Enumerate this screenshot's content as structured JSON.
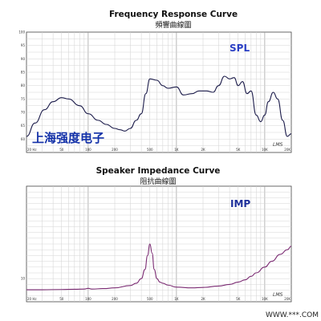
{
  "colors": {
    "spl": "#1b1b4a",
    "imp": "#7a2a72",
    "spl_label": "#2a3fc4",
    "imp_label": "#1d2f9a",
    "overlay": "#1230a8"
  },
  "overlay_text": "上海强度电子",
  "corner_text": "WWW.***.COM",
  "chart_data": [
    {
      "type": "line",
      "title": "Frequency Response Curve",
      "subtitle": "頻響曲線圖",
      "series_label": "SPL",
      "watermark": "LMS",
      "x_scale": "log",
      "xlim": [
        20,
        20000
      ],
      "ylim": [
        55,
        100
      ],
      "x_ticks": [
        {
          "v": 20,
          "label": "20 Hz"
        },
        {
          "v": 50,
          "label": "50"
        },
        {
          "v": 100,
          "label": "100"
        },
        {
          "v": 200,
          "label": "200"
        },
        {
          "v": 500,
          "label": "500"
        },
        {
          "v": 1000,
          "label": "1K"
        },
        {
          "v": 2000,
          "label": "2K"
        },
        {
          "v": 5000,
          "label": "5K"
        },
        {
          "v": 10000,
          "label": "10K"
        },
        {
          "v": 20000,
          "label": "20K"
        }
      ],
      "y_ticks": [
        {
          "v": 100,
          "label": "100"
        },
        {
          "v": 95,
          "label": "95"
        },
        {
          "v": 90,
          "label": "90"
        },
        {
          "v": 85,
          "label": "85"
        },
        {
          "v": 80,
          "label": "80"
        },
        {
          "v": 75,
          "label": "75"
        },
        {
          "v": 70,
          "label": "70"
        },
        {
          "v": 65,
          "label": "65"
        },
        {
          "v": 60,
          "label": "60"
        }
      ],
      "grid": true,
      "x": [
        20,
        25,
        32,
        40,
        50,
        60,
        80,
        100,
        130,
        160,
        200,
        230,
        260,
        300,
        350,
        400,
        450,
        500,
        600,
        700,
        800,
        1000,
        1200,
        1500,
        1800,
        2200,
        2600,
        3000,
        3500,
        4000,
        4500,
        5000,
        5600,
        6300,
        7000,
        8000,
        9000,
        10000,
        11000,
        12500,
        14000,
        16000,
        18000,
        20000
      ],
      "y": [
        61,
        66,
        71,
        74,
        75.5,
        75,
        72.5,
        69.5,
        67,
        65.5,
        64,
        63.5,
        63,
        64,
        67,
        69.5,
        77,
        82.5,
        82,
        80,
        79,
        79.5,
        76.5,
        77,
        78,
        78,
        77.5,
        80,
        83.5,
        82.5,
        83,
        80,
        81.5,
        77,
        78,
        69,
        66.5,
        69,
        74,
        77.5,
        75,
        67,
        61,
        62
      ]
    },
    {
      "type": "line",
      "title": "Speaker Impedance Curve",
      "subtitle": "阻抗曲線圖",
      "series_label": "IMP",
      "watermark": "LMS",
      "x_scale": "log",
      "xlim": [
        20,
        20000
      ],
      "ylim": [
        0,
        50
      ],
      "x_ticks": [
        {
          "v": 20,
          "label": "20 Hz"
        },
        {
          "v": 50,
          "label": "50"
        },
        {
          "v": 100,
          "label": "100"
        },
        {
          "v": 200,
          "label": "200"
        },
        {
          "v": 500,
          "label": "500"
        },
        {
          "v": 1000,
          "label": "1K"
        },
        {
          "v": 2000,
          "label": "2K"
        },
        {
          "v": 5000,
          "label": "5K"
        },
        {
          "v": 10000,
          "label": "10K"
        },
        {
          "v": 20000,
          "label": "20K"
        }
      ],
      "y_ticks": [
        {
          "v": 10,
          "label": "10"
        }
      ],
      "grid": true,
      "x": [
        20,
        30,
        50,
        70,
        90,
        100,
        110,
        150,
        200,
        300,
        350,
        400,
        440,
        470,
        500,
        530,
        560,
        600,
        650,
        700,
        800,
        1000,
        1500,
        2000,
        3000,
        4000,
        5000,
        6000,
        7000,
        8000,
        10000,
        12000,
        15000,
        18000,
        20000
      ],
      "y": [
        5.2,
        5.2,
        5.3,
        5.4,
        5.5,
        5.8,
        5.5,
        5.7,
        6,
        7,
        8,
        10,
        14,
        20,
        25,
        21,
        14,
        10,
        8.5,
        8,
        7.2,
        6.3,
        6,
        6.2,
        6.8,
        7.5,
        8.5,
        9.5,
        11,
        12.5,
        15,
        17.5,
        20.5,
        22.5,
        24
      ]
    }
  ]
}
